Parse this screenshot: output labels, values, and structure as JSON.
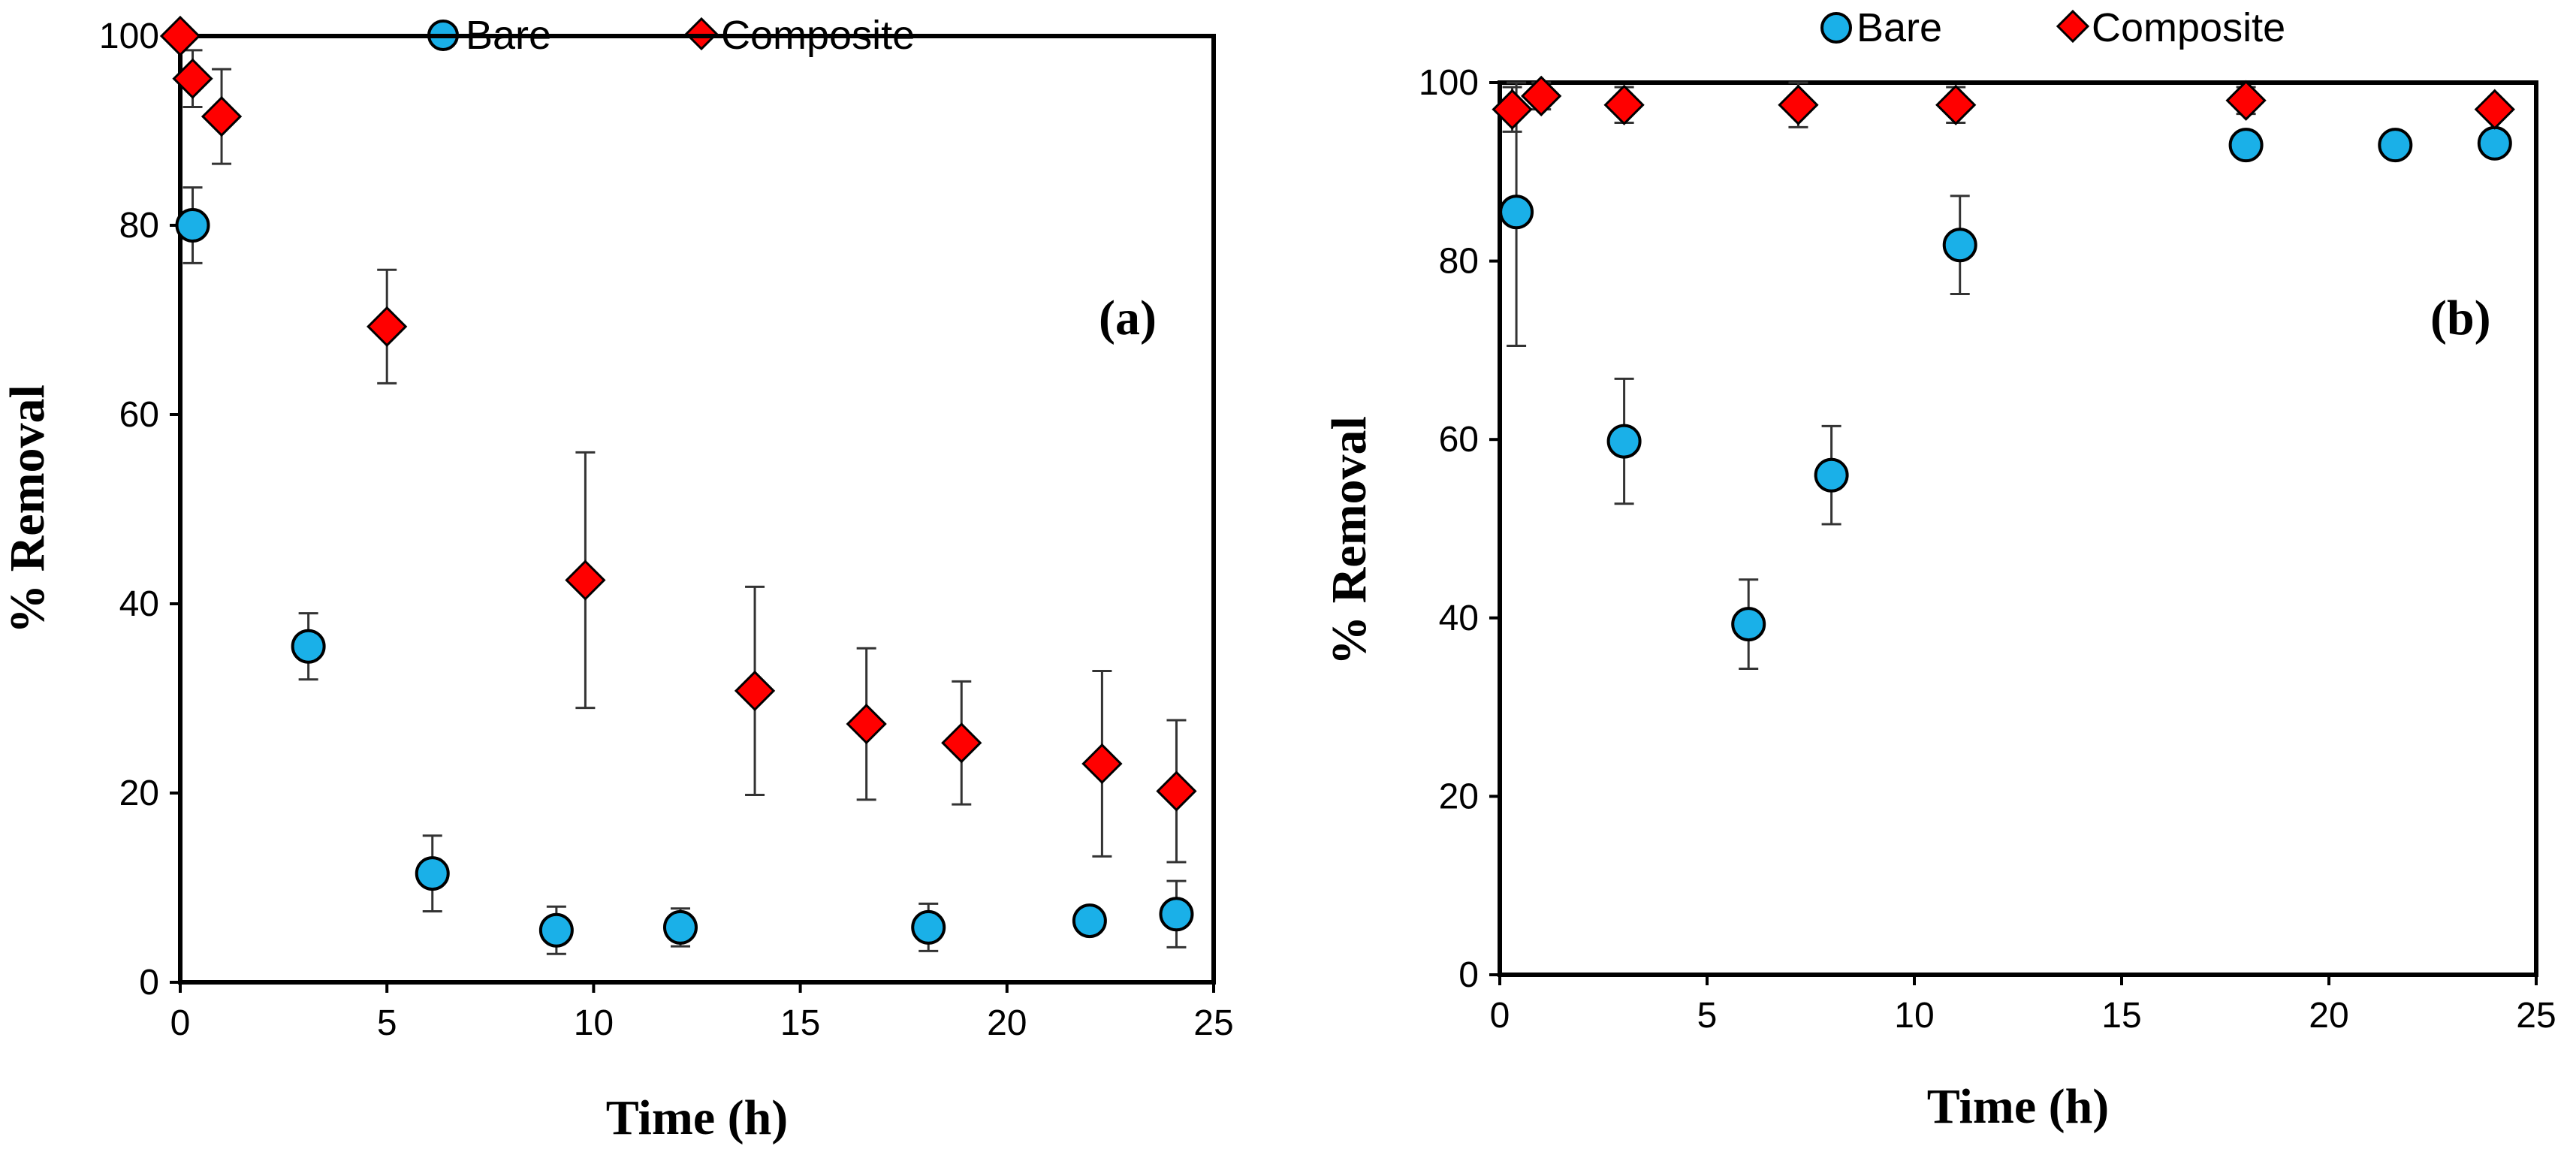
{
  "chart_data": [
    {
      "type": "scatter",
      "panel_label": "(a)",
      "xlabel": "Time (h)",
      "ylabel": "% Removal",
      "xlim": [
        0,
        25
      ],
      "ylim": [
        0,
        100
      ],
      "xticks": [
        0,
        5,
        10,
        15,
        20,
        25
      ],
      "yticks": [
        0,
        20,
        40,
        60,
        80,
        100
      ],
      "grid": false,
      "legend": [
        "Bare",
        "Composite"
      ],
      "legend_position": "top-center",
      "series": [
        {
          "name": "Bare",
          "marker": "circle",
          "color": "#1ab0e8",
          "x": [
            0.3,
            3.1,
            6.1,
            9.1,
            12.1,
            18.1,
            22.0,
            24.1
          ],
          "y": [
            80,
            35.5,
            11.5,
            5.5,
            5.8,
            5.8,
            6.5,
            7.2
          ],
          "err": [
            4,
            3.5,
            4,
            2.5,
            2,
            2.5,
            0,
            3.5
          ]
        },
        {
          "name": "Composite",
          "marker": "diamond",
          "color": "#ff0000",
          "x": [
            0,
            0.3,
            1.0,
            5.0,
            9.8,
            13.9,
            16.6,
            18.9,
            22.3,
            24.1
          ],
          "y": [
            100,
            95.5,
            91.5,
            69.3,
            42.5,
            30.8,
            27.3,
            25.3,
            23.1,
            20.2
          ],
          "err": [
            0,
            3,
            5,
            6,
            13.5,
            11,
            8,
            6.5,
            9.8,
            7.5
          ]
        }
      ]
    },
    {
      "type": "scatter",
      "panel_label": "(b)",
      "xlabel": "Time (h)",
      "ylabel": "% Removal",
      "xlim": [
        0,
        25
      ],
      "ylim": [
        0,
        100
      ],
      "xticks": [
        0,
        5,
        10,
        15,
        20,
        25
      ],
      "yticks": [
        0,
        20,
        40,
        60,
        80,
        100
      ],
      "grid": false,
      "legend": [
        "Bare",
        "Composite"
      ],
      "legend_position": "top-center",
      "series": [
        {
          "name": "Bare",
          "marker": "circle",
          "color": "#1ab0e8",
          "x": [
            0.4,
            3.0,
            6.0,
            8.0,
            11.1,
            18.0,
            21.6,
            24.0
          ],
          "y": [
            85.5,
            59.8,
            39.3,
            56.0,
            81.8,
            93.0,
            93.0,
            93.2
          ],
          "err": [
            15,
            7,
            5,
            5.5,
            5.5,
            1.5,
            0,
            1
          ]
        },
        {
          "name": "Composite",
          "marker": "diamond",
          "color": "#ff0000",
          "x": [
            0.3,
            1.0,
            3.0,
            7.2,
            11.0,
            18.0,
            24.0
          ],
          "y": [
            97,
            98.5,
            97.5,
            97.5,
            97.5,
            98,
            97
          ],
          "err": [
            2.5,
            1.5,
            2,
            2.5,
            2,
            1.5,
            1
          ]
        }
      ]
    }
  ]
}
